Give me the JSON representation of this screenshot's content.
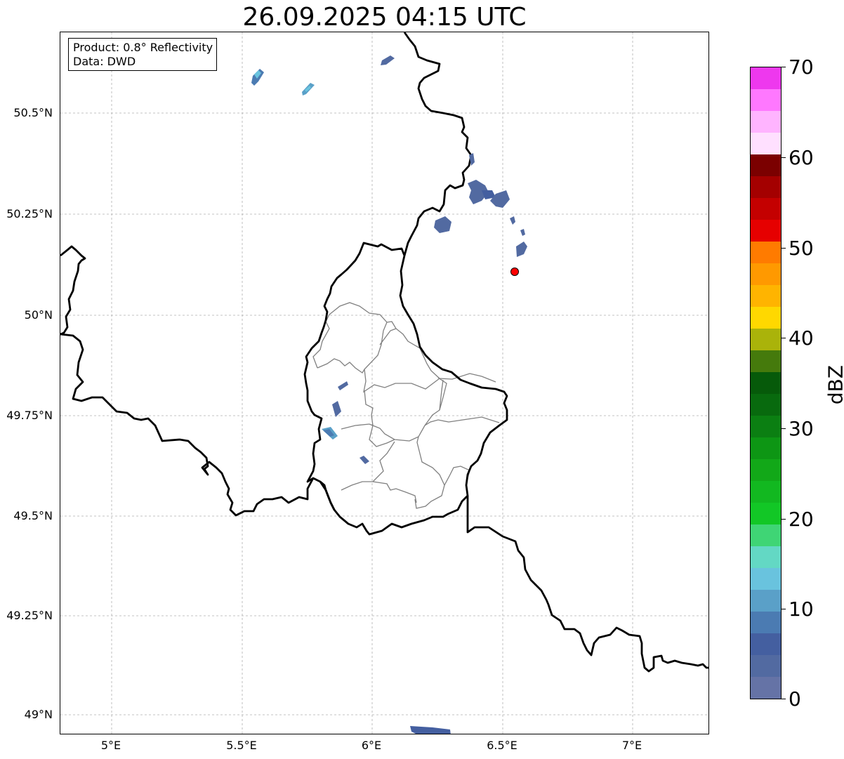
{
  "title": "26.09.2025 04:15 UTC",
  "infobox": {
    "product_line": "Product: 0.8° Reflectivity",
    "data_line": "Data: DWD"
  },
  "latitude_labels": [
    "50.5°N",
    "50.25°N",
    "50°N",
    "49.75°N",
    "49.5°N",
    "49.25°N",
    "49°N"
  ],
  "longitude_labels": [
    "5°E",
    "5.5°E",
    "6°E",
    "6.5°E",
    "7°E"
  ],
  "colorbar": {
    "unit": "dBZ",
    "tick_labels": [
      "70",
      "60",
      "50",
      "40",
      "30",
      "20",
      "10",
      "0"
    ],
    "range": [
      0,
      70
    ],
    "colors": [
      "#6573a6",
      "#526aa1",
      "#445fa0",
      "#4b7bb2",
      "#5aa0c8",
      "#69c3de",
      "#63d8c4",
      "#3fd575",
      "#12c726",
      "#12b820",
      "#12a818",
      "#0d9614",
      "#0b7f12",
      "#086a0e",
      "#065a0a",
      "#457a0c",
      "#aab30a",
      "#ffd800",
      "#ffb400",
      "#ff9900",
      "#ff7b00",
      "#e60000",
      "#c40000",
      "#a40000",
      "#7b0000",
      "#ffe0ff",
      "#ffb4ff",
      "#ff78ff",
      "#ee38ee"
    ]
  },
  "marker": {
    "name": "radar site",
    "lon": 6.55,
    "lat": 50.11,
    "color": "#ff0000"
  }
}
